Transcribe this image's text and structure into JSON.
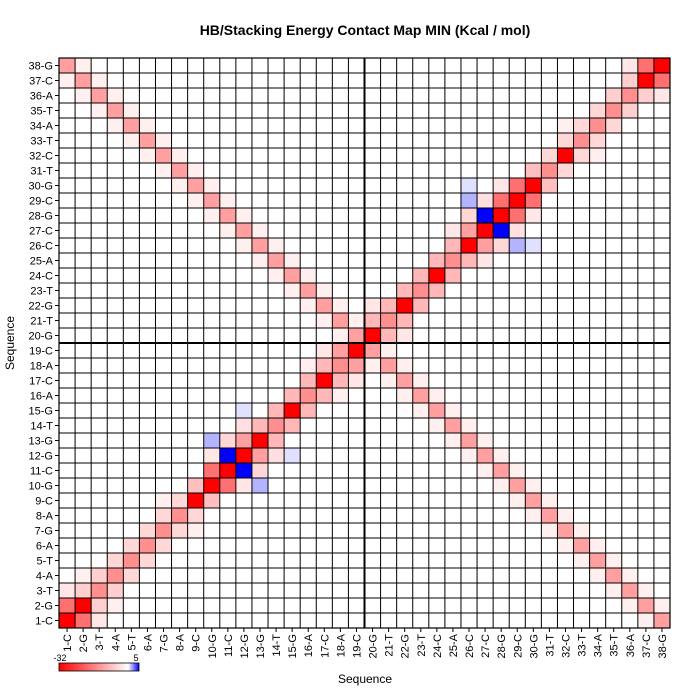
{
  "chart_data": {
    "type": "heatmap",
    "title": "HB/Stacking Energy Contact Map MIN (Kcal / mol)",
    "xlabel": "Sequence",
    "ylabel": "Sequence",
    "labels": [
      "1-C",
      "2-G",
      "3-T",
      "4-A",
      "5-T",
      "6-A",
      "7-G",
      "8-A",
      "9-C",
      "10-G",
      "11-C",
      "12-G",
      "13-G",
      "14-T",
      "15-G",
      "16-A",
      "17-C",
      "18-A",
      "19-C",
      "20-G",
      "21-T",
      "22-G",
      "23-T",
      "24-C",
      "25-A",
      "26-C",
      "27-C",
      "28-G",
      "29-C",
      "30-G",
      "31-T",
      "32-C",
      "33-T",
      "34-A",
      "35-T",
      "36-A",
      "37-C",
      "38-G"
    ],
    "colorbar": {
      "min_label": "-32",
      "max_label": "5",
      "min": -32,
      "max": 5,
      "low_color": "#ff0000",
      "mid_color": "#ffffff",
      "high_color": "#0000ff"
    },
    "divider_after_index": 19,
    "grid": true,
    "cells": [
      [
        1,
        1,
        -32
      ],
      [
        2,
        2,
        -32
      ],
      [
        9,
        9,
        -32
      ],
      [
        10,
        10,
        -32
      ],
      [
        11,
        11,
        -32
      ],
      [
        12,
        12,
        -32
      ],
      [
        13,
        13,
        -32
      ],
      [
        15,
        15,
        -32
      ],
      [
        17,
        17,
        -32
      ],
      [
        19,
        19,
        -32
      ],
      [
        20,
        20,
        -32
      ],
      [
        22,
        22,
        -32
      ],
      [
        24,
        24,
        -32
      ],
      [
        26,
        26,
        -32
      ],
      [
        27,
        27,
        -32
      ],
      [
        28,
        28,
        -32
      ],
      [
        29,
        29,
        -32
      ],
      [
        30,
        30,
        -32
      ],
      [
        32,
        32,
        -32
      ],
      [
        37,
        37,
        -32
      ],
      [
        38,
        38,
        -32
      ],
      [
        3,
        3,
        -14
      ],
      [
        4,
        4,
        -14
      ],
      [
        5,
        5,
        -14
      ],
      [
        6,
        6,
        -14
      ],
      [
        7,
        7,
        -14
      ],
      [
        8,
        8,
        -14
      ],
      [
        14,
        14,
        -14
      ],
      [
        16,
        16,
        -14
      ],
      [
        18,
        18,
        -14
      ],
      [
        21,
        21,
        -14
      ],
      [
        23,
        23,
        -14
      ],
      [
        25,
        25,
        -14
      ],
      [
        31,
        31,
        -14
      ],
      [
        33,
        33,
        -14
      ],
      [
        34,
        34,
        -14
      ],
      [
        35,
        35,
        -14
      ],
      [
        36,
        36,
        -14
      ],
      [
        1,
        2,
        -18
      ],
      [
        2,
        1,
        -18
      ],
      [
        2,
        3,
        -6
      ],
      [
        3,
        2,
        -6
      ],
      [
        3,
        4,
        -6
      ],
      [
        4,
        3,
        -6
      ],
      [
        4,
        5,
        -5
      ],
      [
        5,
        4,
        -5
      ],
      [
        5,
        6,
        -5
      ],
      [
        6,
        5,
        -5
      ],
      [
        6,
        7,
        -5
      ],
      [
        7,
        6,
        -5
      ],
      [
        7,
        8,
        -5
      ],
      [
        8,
        7,
        -5
      ],
      [
        8,
        9,
        -5
      ],
      [
        9,
        8,
        -5
      ],
      [
        9,
        10,
        -8
      ],
      [
        10,
        9,
        -8
      ],
      [
        10,
        11,
        -18
      ],
      [
        11,
        10,
        -18
      ],
      [
        11,
        12,
        -18
      ],
      [
        12,
        11,
        -18
      ],
      [
        12,
        13,
        -12
      ],
      [
        13,
        12,
        -12
      ],
      [
        13,
        14,
        -9
      ],
      [
        14,
        13,
        -9
      ],
      [
        14,
        15,
        -9
      ],
      [
        15,
        14,
        -9
      ],
      [
        15,
        16,
        -9
      ],
      [
        16,
        15,
        -9
      ],
      [
        16,
        17,
        -9
      ],
      [
        17,
        16,
        -9
      ],
      [
        17,
        18,
        -9
      ],
      [
        18,
        17,
        -9
      ],
      [
        18,
        19,
        -12
      ],
      [
        19,
        18,
        -12
      ],
      [
        19,
        20,
        -12
      ],
      [
        20,
        19,
        -12
      ],
      [
        20,
        21,
        -9
      ],
      [
        21,
        20,
        -9
      ],
      [
        21,
        22,
        -9
      ],
      [
        22,
        21,
        -9
      ],
      [
        22,
        23,
        -9
      ],
      [
        23,
        22,
        -9
      ],
      [
        23,
        24,
        -9
      ],
      [
        24,
        23,
        -9
      ],
      [
        24,
        25,
        -9
      ],
      [
        25,
        24,
        -9
      ],
      [
        25,
        26,
        -9
      ],
      [
        26,
        25,
        -9
      ],
      [
        26,
        27,
        -12
      ],
      [
        27,
        26,
        -12
      ],
      [
        27,
        28,
        -12
      ],
      [
        28,
        27,
        -12
      ],
      [
        28,
        29,
        -18
      ],
      [
        29,
        28,
        -18
      ],
      [
        29,
        30,
        -18
      ],
      [
        30,
        29,
        -18
      ],
      [
        30,
        31,
        -8
      ],
      [
        31,
        30,
        -8
      ],
      [
        31,
        32,
        -5
      ],
      [
        32,
        31,
        -5
      ],
      [
        32,
        33,
        -5
      ],
      [
        33,
        32,
        -5
      ],
      [
        33,
        34,
        -5
      ],
      [
        34,
        33,
        -5
      ],
      [
        34,
        35,
        -5
      ],
      [
        35,
        34,
        -5
      ],
      [
        35,
        36,
        -6
      ],
      [
        36,
        35,
        -6
      ],
      [
        36,
        37,
        -6
      ],
      [
        37,
        36,
        -6
      ],
      [
        37,
        38,
        -18
      ],
      [
        38,
        37,
        -18
      ],
      [
        1,
        3,
        -3
      ],
      [
        3,
        1,
        -3
      ],
      [
        2,
        4,
        -2
      ],
      [
        4,
        2,
        -2
      ],
      [
        7,
        9,
        -2
      ],
      [
        9,
        7,
        -2
      ],
      [
        10,
        12,
        -3
      ],
      [
        12,
        10,
        -3
      ],
      [
        11,
        13,
        -5
      ],
      [
        13,
        11,
        -5
      ],
      [
        12,
        14,
        -4
      ],
      [
        14,
        12,
        -4
      ],
      [
        16,
        18,
        -2
      ],
      [
        18,
        16,
        -2
      ],
      [
        17,
        19,
        -3
      ],
      [
        19,
        17,
        -3
      ],
      [
        19,
        21,
        -3
      ],
      [
        21,
        19,
        -3
      ],
      [
        20,
        22,
        -3
      ],
      [
        22,
        20,
        -3
      ],
      [
        25,
        27,
        -3
      ],
      [
        27,
        25,
        -3
      ],
      [
        26,
        28,
        -5
      ],
      [
        28,
        26,
        -5
      ],
      [
        27,
        29,
        -4
      ],
      [
        29,
        27,
        -4
      ],
      [
        28,
        30,
        -3
      ],
      [
        30,
        28,
        -3
      ],
      [
        32,
        34,
        -2
      ],
      [
        34,
        32,
        -2
      ],
      [
        36,
        38,
        -3
      ],
      [
        38,
        36,
        -3
      ],
      [
        11,
        12,
        5
      ],
      [
        12,
        11,
        5
      ],
      [
        27,
        28,
        5
      ],
      [
        28,
        27,
        5
      ],
      [
        10,
        13,
        1.5
      ],
      [
        13,
        10,
        1.5
      ],
      [
        26,
        29,
        1.5
      ],
      [
        29,
        26,
        1.5
      ],
      [
        12,
        15,
        0.6
      ],
      [
        15,
        12,
        0.6
      ],
      [
        26,
        30,
        0.6
      ],
      [
        30,
        26,
        0.6
      ],
      [
        1,
        38,
        -12
      ],
      [
        38,
        1,
        -12
      ],
      [
        2,
        37,
        -12
      ],
      [
        37,
        2,
        -12
      ],
      [
        3,
        36,
        -12
      ],
      [
        36,
        3,
        -12
      ],
      [
        4,
        35,
        -12
      ],
      [
        35,
        4,
        -12
      ],
      [
        5,
        34,
        -12
      ],
      [
        34,
        5,
        -12
      ],
      [
        6,
        33,
        -12
      ],
      [
        33,
        6,
        -12
      ],
      [
        7,
        32,
        -12
      ],
      [
        32,
        7,
        -12
      ],
      [
        8,
        31,
        -12
      ],
      [
        31,
        8,
        -12
      ],
      [
        9,
        30,
        -12
      ],
      [
        30,
        9,
        -12
      ],
      [
        10,
        29,
        -12
      ],
      [
        29,
        10,
        -12
      ],
      [
        11,
        28,
        -12
      ],
      [
        28,
        11,
        -12
      ],
      [
        12,
        27,
        -12
      ],
      [
        27,
        12,
        -12
      ],
      [
        13,
        26,
        -12
      ],
      [
        26,
        13,
        -12
      ],
      [
        14,
        25,
        -12
      ],
      [
        25,
        14,
        -12
      ],
      [
        15,
        24,
        -12
      ],
      [
        24,
        15,
        -12
      ],
      [
        16,
        23,
        -12
      ],
      [
        23,
        16,
        -12
      ],
      [
        17,
        22,
        -12
      ],
      [
        22,
        17,
        -12
      ],
      [
        18,
        21,
        -12
      ],
      [
        21,
        18,
        -12
      ],
      [
        19,
        20,
        -12
      ],
      [
        20,
        19,
        -12
      ],
      [
        1,
        37,
        -2
      ],
      [
        37,
        1,
        -2
      ],
      [
        2,
        36,
        -2
      ],
      [
        36,
        2,
        -2
      ],
      [
        3,
        35,
        -2
      ],
      [
        35,
        3,
        -2
      ],
      [
        4,
        34,
        -2
      ],
      [
        34,
        4,
        -2
      ],
      [
        5,
        33,
        -2
      ],
      [
        33,
        5,
        -2
      ],
      [
        6,
        32,
        -2
      ],
      [
        32,
        6,
        -2
      ],
      [
        7,
        31,
        -2
      ],
      [
        31,
        7,
        -2
      ],
      [
        8,
        30,
        -2
      ],
      [
        30,
        8,
        -2
      ],
      [
        9,
        29,
        -2
      ],
      [
        29,
        9,
        -2
      ],
      [
        10,
        28,
        -2
      ],
      [
        28,
        10,
        -2
      ],
      [
        11,
        27,
        -2
      ],
      [
        27,
        11,
        -2
      ],
      [
        12,
        26,
        -2
      ],
      [
        26,
        12,
        -2
      ],
      [
        13,
        25,
        -2
      ],
      [
        25,
        13,
        -2
      ],
      [
        14,
        24,
        -2
      ],
      [
        24,
        14,
        -2
      ],
      [
        15,
        23,
        -2
      ],
      [
        23,
        15,
        -2
      ],
      [
        16,
        22,
        -2
      ],
      [
        22,
        16,
        -2
      ],
      [
        17,
        21,
        -2
      ],
      [
        21,
        17,
        -2
      ],
      [
        18,
        20,
        -2
      ],
      [
        20,
        18,
        -2
      ],
      [
        2,
        38,
        -2
      ],
      [
        38,
        2,
        -2
      ],
      [
        3,
        37,
        -2
      ],
      [
        37,
        3,
        -2
      ],
      [
        4,
        36,
        -2
      ],
      [
        36,
        4,
        -2
      ],
      [
        5,
        35,
        -2
      ],
      [
        35,
        5,
        -2
      ],
      [
        6,
        34,
        -2
      ],
      [
        34,
        6,
        -2
      ],
      [
        7,
        33,
        -2
      ],
      [
        33,
        7,
        -2
      ],
      [
        8,
        32,
        -2
      ],
      [
        32,
        8,
        -2
      ],
      [
        9,
        31,
        -2
      ],
      [
        31,
        9,
        -2
      ],
      [
        10,
        30,
        -2
      ],
      [
        30,
        10,
        -2
      ],
      [
        11,
        29,
        -2
      ],
      [
        29,
        11,
        -2
      ],
      [
        12,
        28,
        -2
      ],
      [
        28,
        12,
        -2
      ],
      [
        13,
        27,
        -2
      ],
      [
        27,
        13,
        -2
      ],
      [
        14,
        26,
        -2
      ],
      [
        26,
        14,
        -2
      ],
      [
        15,
        25,
        -2
      ],
      [
        25,
        15,
        -2
      ],
      [
        16,
        24,
        -2
      ],
      [
        24,
        16,
        -2
      ],
      [
        17,
        23,
        -2
      ],
      [
        23,
        17,
        -2
      ],
      [
        18,
        22,
        -2
      ],
      [
        22,
        18,
        -2
      ],
      [
        19,
        21,
        -2
      ],
      [
        21,
        19,
        -2
      ]
    ]
  }
}
